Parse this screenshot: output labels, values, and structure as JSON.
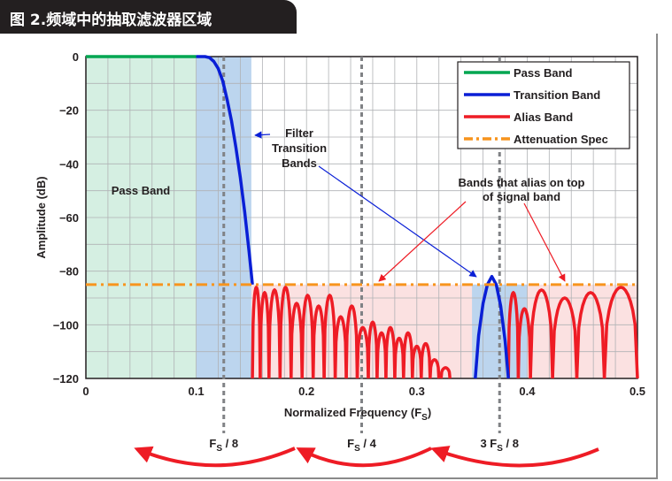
{
  "header": {
    "title": "图 2.频域中的抽取滤波器区域"
  },
  "colors": {
    "pass_band": "#00a651",
    "transition_band": "#0a1fd6",
    "alias_band": "#ee1c25",
    "attenuation_spec": "#f7941d",
    "pass_fill": "#d5efe2",
    "transition_fill": "#bcd5ee",
    "alias_fill": "#fbe1e1"
  },
  "chart_data": {
    "type": "line",
    "xlabel": "Normalized Frequency (F",
    "xlabel_sub": "S",
    "xlabel_close": ")",
    "ylabel": "Amplitude (dB)",
    "xlim": [
      0,
      0.5
    ],
    "ylim": [
      -120,
      0
    ],
    "x_ticks": [
      0,
      0.1,
      0.2,
      0.3,
      0.4,
      0.5
    ],
    "x_tick_labels": [
      "0",
      "0.1",
      "0.2",
      "0.3",
      "0.4",
      "0.5"
    ],
    "y_ticks": [
      0,
      -20,
      -40,
      -60,
      -80,
      -100,
      -120
    ],
    "y_tick_labels": [
      "0",
      "−20",
      "−40",
      "−60",
      "−80",
      "−100",
      "−120"
    ],
    "grid": true,
    "legend_position": "top-right",
    "legend": [
      {
        "label": "Pass Band",
        "style": "solid",
        "color": "#00a651"
      },
      {
        "label": "Transition Band",
        "style": "solid",
        "color": "#0a1fd6"
      },
      {
        "label": "Alias Band",
        "style": "solid",
        "color": "#ee1c25"
      },
      {
        "label": "Attenuation Spec",
        "style": "dashdot",
        "color": "#f7941d"
      }
    ],
    "attenuation_spec_db": -85,
    "regions": [
      {
        "name": "Pass Band",
        "x": [
          0,
          0.1
        ],
        "y": [
          -120,
          0
        ]
      },
      {
        "name": "Transition Band",
        "x": [
          0.1,
          0.15
        ],
        "y": [
          -120,
          0
        ]
      },
      {
        "name": "Alias Band",
        "x": [
          0.15,
          0.5
        ],
        "y": [
          -120,
          -85
        ]
      },
      {
        "name": "Transition Band",
        "x": [
          0.35,
          0.4
        ],
        "y": [
          -120,
          -85
        ]
      }
    ],
    "vertical_markers": [
      {
        "x": 0.125,
        "label_main": "F",
        "label_sub": "S",
        "label_tail": " / 8"
      },
      {
        "x": 0.25,
        "label_main": "F",
        "label_sub": "S",
        "label_tail": " / 4"
      },
      {
        "x": 0.375,
        "label_main": "3  F",
        "label_sub": "S",
        "label_tail": " / 8"
      }
    ],
    "series": [
      {
        "name": "Pass Band",
        "points": [
          [
            0,
            0
          ],
          [
            0.1,
            0
          ]
        ]
      },
      {
        "name": "Transition Band",
        "points": [
          [
            0.1,
            0
          ],
          [
            0.108,
            0
          ],
          [
            0.112,
            -0.4
          ],
          [
            0.116,
            -1.8
          ],
          [
            0.12,
            -4.5
          ],
          [
            0.124,
            -9
          ],
          [
            0.128,
            -16
          ],
          [
            0.132,
            -24
          ],
          [
            0.136,
            -34
          ],
          [
            0.14,
            -45
          ],
          [
            0.144,
            -58
          ],
          [
            0.148,
            -73
          ],
          [
            0.151,
            -85
          ]
        ]
      },
      {
        "name": "Transition Band (aliased)",
        "points": [
          [
            0.353,
            -120
          ],
          [
            0.356,
            -104
          ],
          [
            0.36,
            -92
          ],
          [
            0.364,
            -85
          ],
          [
            0.368,
            -82
          ],
          [
            0.372,
            -85
          ],
          [
            0.376,
            -93
          ],
          [
            0.38,
            -106
          ],
          [
            0.383,
            -120
          ]
        ]
      }
    ],
    "alias_lobes": [
      [
        0.151,
        0.158,
        -86
      ],
      [
        0.158,
        0.166,
        -88
      ],
      [
        0.166,
        0.176,
        -87
      ],
      [
        0.176,
        0.186,
        -86
      ],
      [
        0.186,
        0.196,
        -92
      ],
      [
        0.196,
        0.206,
        -89
      ],
      [
        0.206,
        0.216,
        -93
      ],
      [
        0.216,
        0.226,
        -89
      ],
      [
        0.226,
        0.236,
        -97
      ],
      [
        0.236,
        0.246,
        -93
      ],
      [
        0.246,
        0.256,
        -101
      ],
      [
        0.256,
        0.264,
        -99
      ],
      [
        0.264,
        0.272,
        -103
      ],
      [
        0.272,
        0.28,
        -101
      ],
      [
        0.28,
        0.288,
        -105
      ],
      [
        0.288,
        0.296,
        -103
      ],
      [
        0.296,
        0.304,
        -108
      ],
      [
        0.304,
        0.312,
        -107
      ],
      [
        0.312,
        0.32,
        -113
      ],
      [
        0.322,
        0.33,
        -116
      ],
      [
        0.383,
        0.392,
        -88
      ],
      [
        0.392,
        0.403,
        -94
      ],
      [
        0.403,
        0.423,
        -87
      ],
      [
        0.423,
        0.445,
        -90
      ],
      [
        0.445,
        0.47,
        -88
      ],
      [
        0.47,
        0.5,
        -86
      ]
    ],
    "annotations": {
      "pass_band_region": "Pass Band",
      "filter_transition": [
        "Filter",
        "Transition",
        "Bands"
      ],
      "alias_note": [
        "Bands that alias on top",
        "of signal band"
      ]
    }
  }
}
